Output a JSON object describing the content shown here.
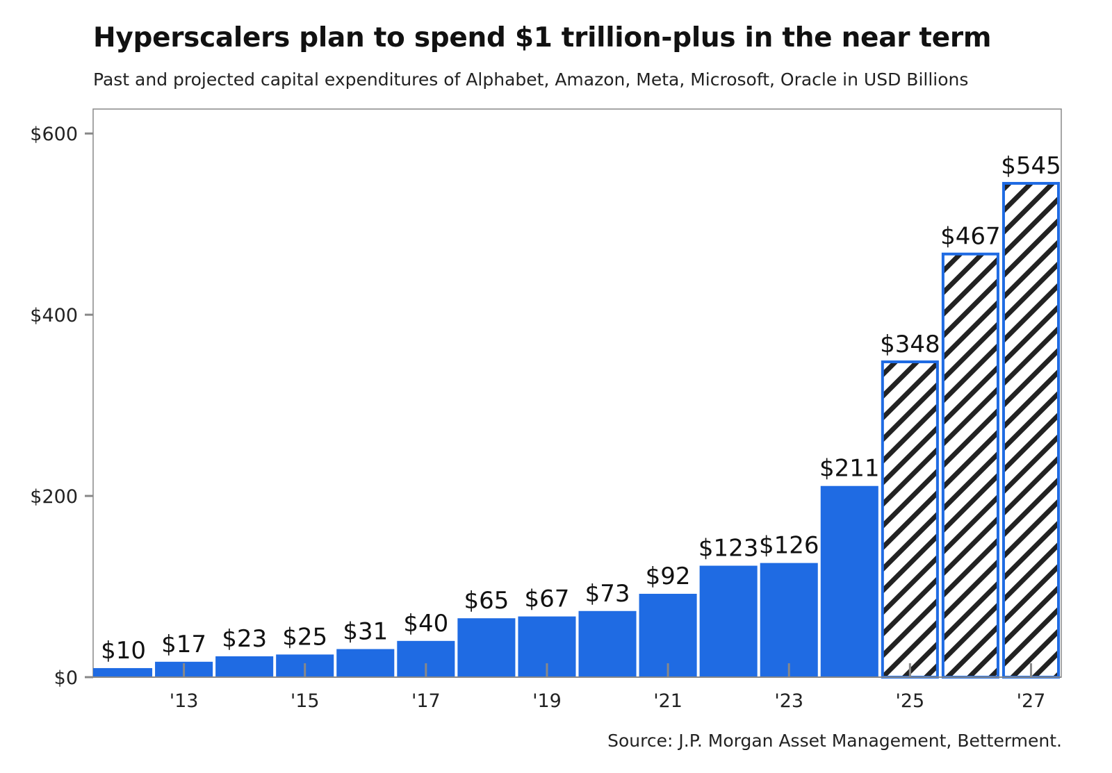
{
  "chart_data": {
    "type": "bar",
    "title": "Hyperscalers plan to spend $1 trillion-plus in the near term",
    "subtitle": "Past and projected capital expenditures of Alphabet, Amazon, Meta, Microsoft, Oracle in USD Billions",
    "source": "Source: J.P. Morgan Asset Management, Betterment.",
    "categories": [
      2012,
      2013,
      2014,
      2015,
      2016,
      2017,
      2018,
      2019,
      2020,
      2021,
      2022,
      2023,
      2024,
      2025,
      2026,
      2027
    ],
    "values": [
      10,
      17,
      23,
      25,
      31,
      40,
      65,
      67,
      73,
      92,
      123,
      126,
      211,
      348,
      467,
      545
    ],
    "data_labels": [
      "$10",
      "$17",
      "$23",
      "$25",
      "$31",
      "$40",
      "$65",
      "$67",
      "$73",
      "$92",
      "$123",
      "$126",
      "$211",
      "$348",
      "$467",
      "$545"
    ],
    "projected": [
      false,
      false,
      false,
      false,
      false,
      false,
      false,
      false,
      false,
      false,
      false,
      false,
      false,
      true,
      true,
      true
    ],
    "x_tick_labels": [
      {
        "year": 2013,
        "label": "'13"
      },
      {
        "year": 2015,
        "label": "'15"
      },
      {
        "year": 2017,
        "label": "'17"
      },
      {
        "year": 2019,
        "label": "'19"
      },
      {
        "year": 2021,
        "label": "'21"
      },
      {
        "year": 2023,
        "label": "'23"
      },
      {
        "year": 2025,
        "label": "'25"
      },
      {
        "year": 2027,
        "label": "'27"
      }
    ],
    "y_ticks": [
      {
        "value": 0,
        "label": "$0"
      },
      {
        "value": 200,
        "label": "$200"
      },
      {
        "value": 400,
        "label": "$400"
      },
      {
        "value": 600,
        "label": "$600"
      }
    ],
    "ylim": [
      0,
      627
    ],
    "xlabel": "",
    "ylabel": "",
    "grid": false,
    "colors": {
      "bar": "#1f6be3",
      "hatch": "#222222",
      "axis": "#888888"
    }
  }
}
